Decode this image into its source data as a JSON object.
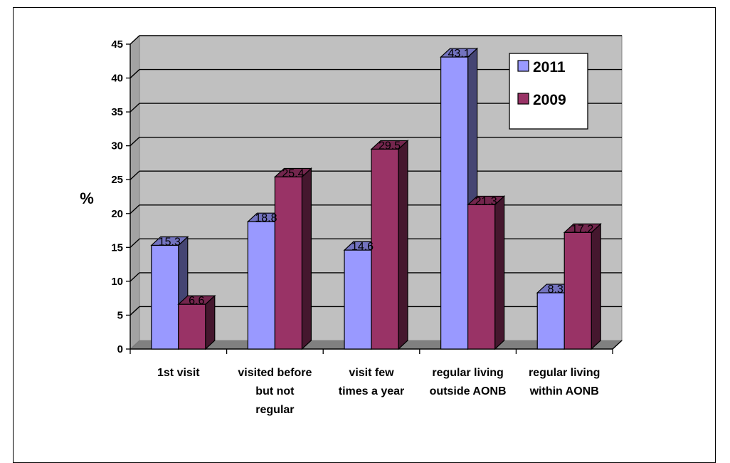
{
  "chart_data": {
    "type": "bar",
    "style": "3d-clustered-column",
    "categories": [
      "1st visit",
      "visited before but not regular",
      "visit few times a year",
      "regular living outside AONB",
      "regular living within AONB"
    ],
    "category_lines": [
      [
        "1st visit"
      ],
      [
        "visited before",
        "but not",
        "regular"
      ],
      [
        "visit few",
        "times a year"
      ],
      [
        "regular living",
        "outside AONB"
      ],
      [
        "regular living",
        "within AONB"
      ]
    ],
    "series": [
      {
        "name": "2011",
        "color": "#9999FF",
        "values": [
          15.3,
          18.8,
          14.6,
          43.1,
          8.3
        ]
      },
      {
        "name": "2009",
        "color": "#993366",
        "values": [
          6.6,
          25.4,
          29.5,
          21.3,
          17.2
        ]
      }
    ],
    "ylabel": "%",
    "ylim": [
      0,
      45
    ],
    "yticks": [
      0,
      5,
      10,
      15,
      20,
      25,
      30,
      35,
      40,
      45
    ],
    "grid": true,
    "wall_color": "#C0C0C0",
    "legend_position": "top-right",
    "data_labels": true
  }
}
